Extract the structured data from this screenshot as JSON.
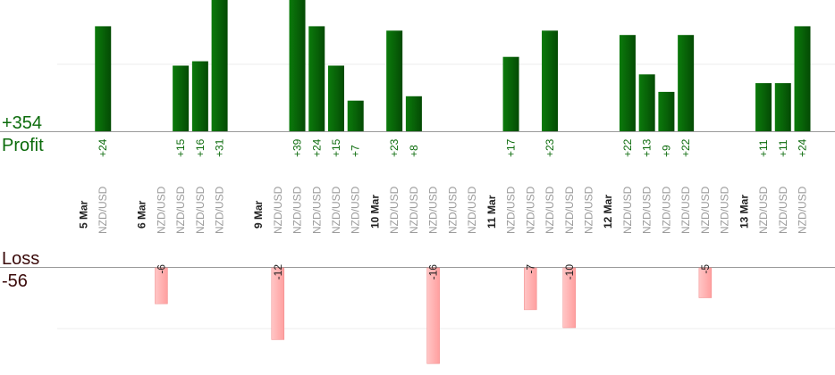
{
  "chart_data": {
    "type": "bar",
    "labels": {
      "profit_total": "+354",
      "profit": "Profit",
      "loss": "Loss",
      "loss_total": "-56"
    },
    "dates": [
      {
        "label": "5 Mar",
        "index": 0
      },
      {
        "label": "6 Mar",
        "index": 3
      },
      {
        "label": "9 Mar",
        "index": 9
      },
      {
        "label": "10 Mar",
        "index": 15
      },
      {
        "label": "11 Mar",
        "index": 21
      },
      {
        "label": "12 Mar",
        "index": 27
      },
      {
        "label": "13 Mar",
        "index": 34
      }
    ],
    "trades": [
      {
        "index": 1,
        "pair": "NZD/USD",
        "value": 24
      },
      {
        "index": 4,
        "pair": "NZD/USD",
        "value": -6
      },
      {
        "index": 5,
        "pair": "NZD/USD",
        "value": 15
      },
      {
        "index": 6,
        "pair": "NZD/USD",
        "value": 16
      },
      {
        "index": 7,
        "pair": "NZD/USD",
        "value": 31
      },
      {
        "index": 10,
        "pair": "NZD/USD",
        "value": -12
      },
      {
        "index": 11,
        "pair": "NZD/USD",
        "value": 39
      },
      {
        "index": 12,
        "pair": "NZD/USD",
        "value": 24
      },
      {
        "index": 13,
        "pair": "NZD/USD",
        "value": 15
      },
      {
        "index": 14,
        "pair": "NZD/USD",
        "value": 7
      },
      {
        "index": 16,
        "pair": "NZD/USD",
        "value": 23
      },
      {
        "index": 17,
        "pair": "NZD/USD",
        "value": 8
      },
      {
        "index": 18,
        "pair": "NZD/USD",
        "value": -16
      },
      {
        "index": 19,
        "pair": "NZD/USD",
        "value": 0
      },
      {
        "index": 20,
        "pair": "NZD/USD",
        "value": 0
      },
      {
        "index": 22,
        "pair": "NZD/USD",
        "value": 17
      },
      {
        "index": 23,
        "pair": "NZD/USD",
        "value": -7
      },
      {
        "index": 24,
        "pair": "NZD/USD",
        "value": 23
      },
      {
        "index": 25,
        "pair": "NZD/USD",
        "value": -10
      },
      {
        "index": 26,
        "pair": "NZD/USD",
        "value": 0
      },
      {
        "index": 28,
        "pair": "NZD/USD",
        "value": 22
      },
      {
        "index": 29,
        "pair": "NZD/USD",
        "value": 13
      },
      {
        "index": 30,
        "pair": "NZD/USD",
        "value": 9
      },
      {
        "index": 31,
        "pair": "NZD/USD",
        "value": 22
      },
      {
        "index": 32,
        "pair": "NZD/USD",
        "value": -5
      },
      {
        "index": 33,
        "pair": "NZD/USD",
        "value": 0
      },
      {
        "index": 35,
        "pair": "NZD/USD",
        "value": 11
      },
      {
        "index": 36,
        "pair": "NZD/USD",
        "value": 11
      },
      {
        "index": 37,
        "pair": "NZD/USD",
        "value": 24
      }
    ],
    "colors": {
      "profit_bar": "#0a6b0a",
      "profit_text": "#0b6b0b",
      "loss_bar": "#ffb3b3",
      "loss_text": "#3a0a0a"
    }
  }
}
